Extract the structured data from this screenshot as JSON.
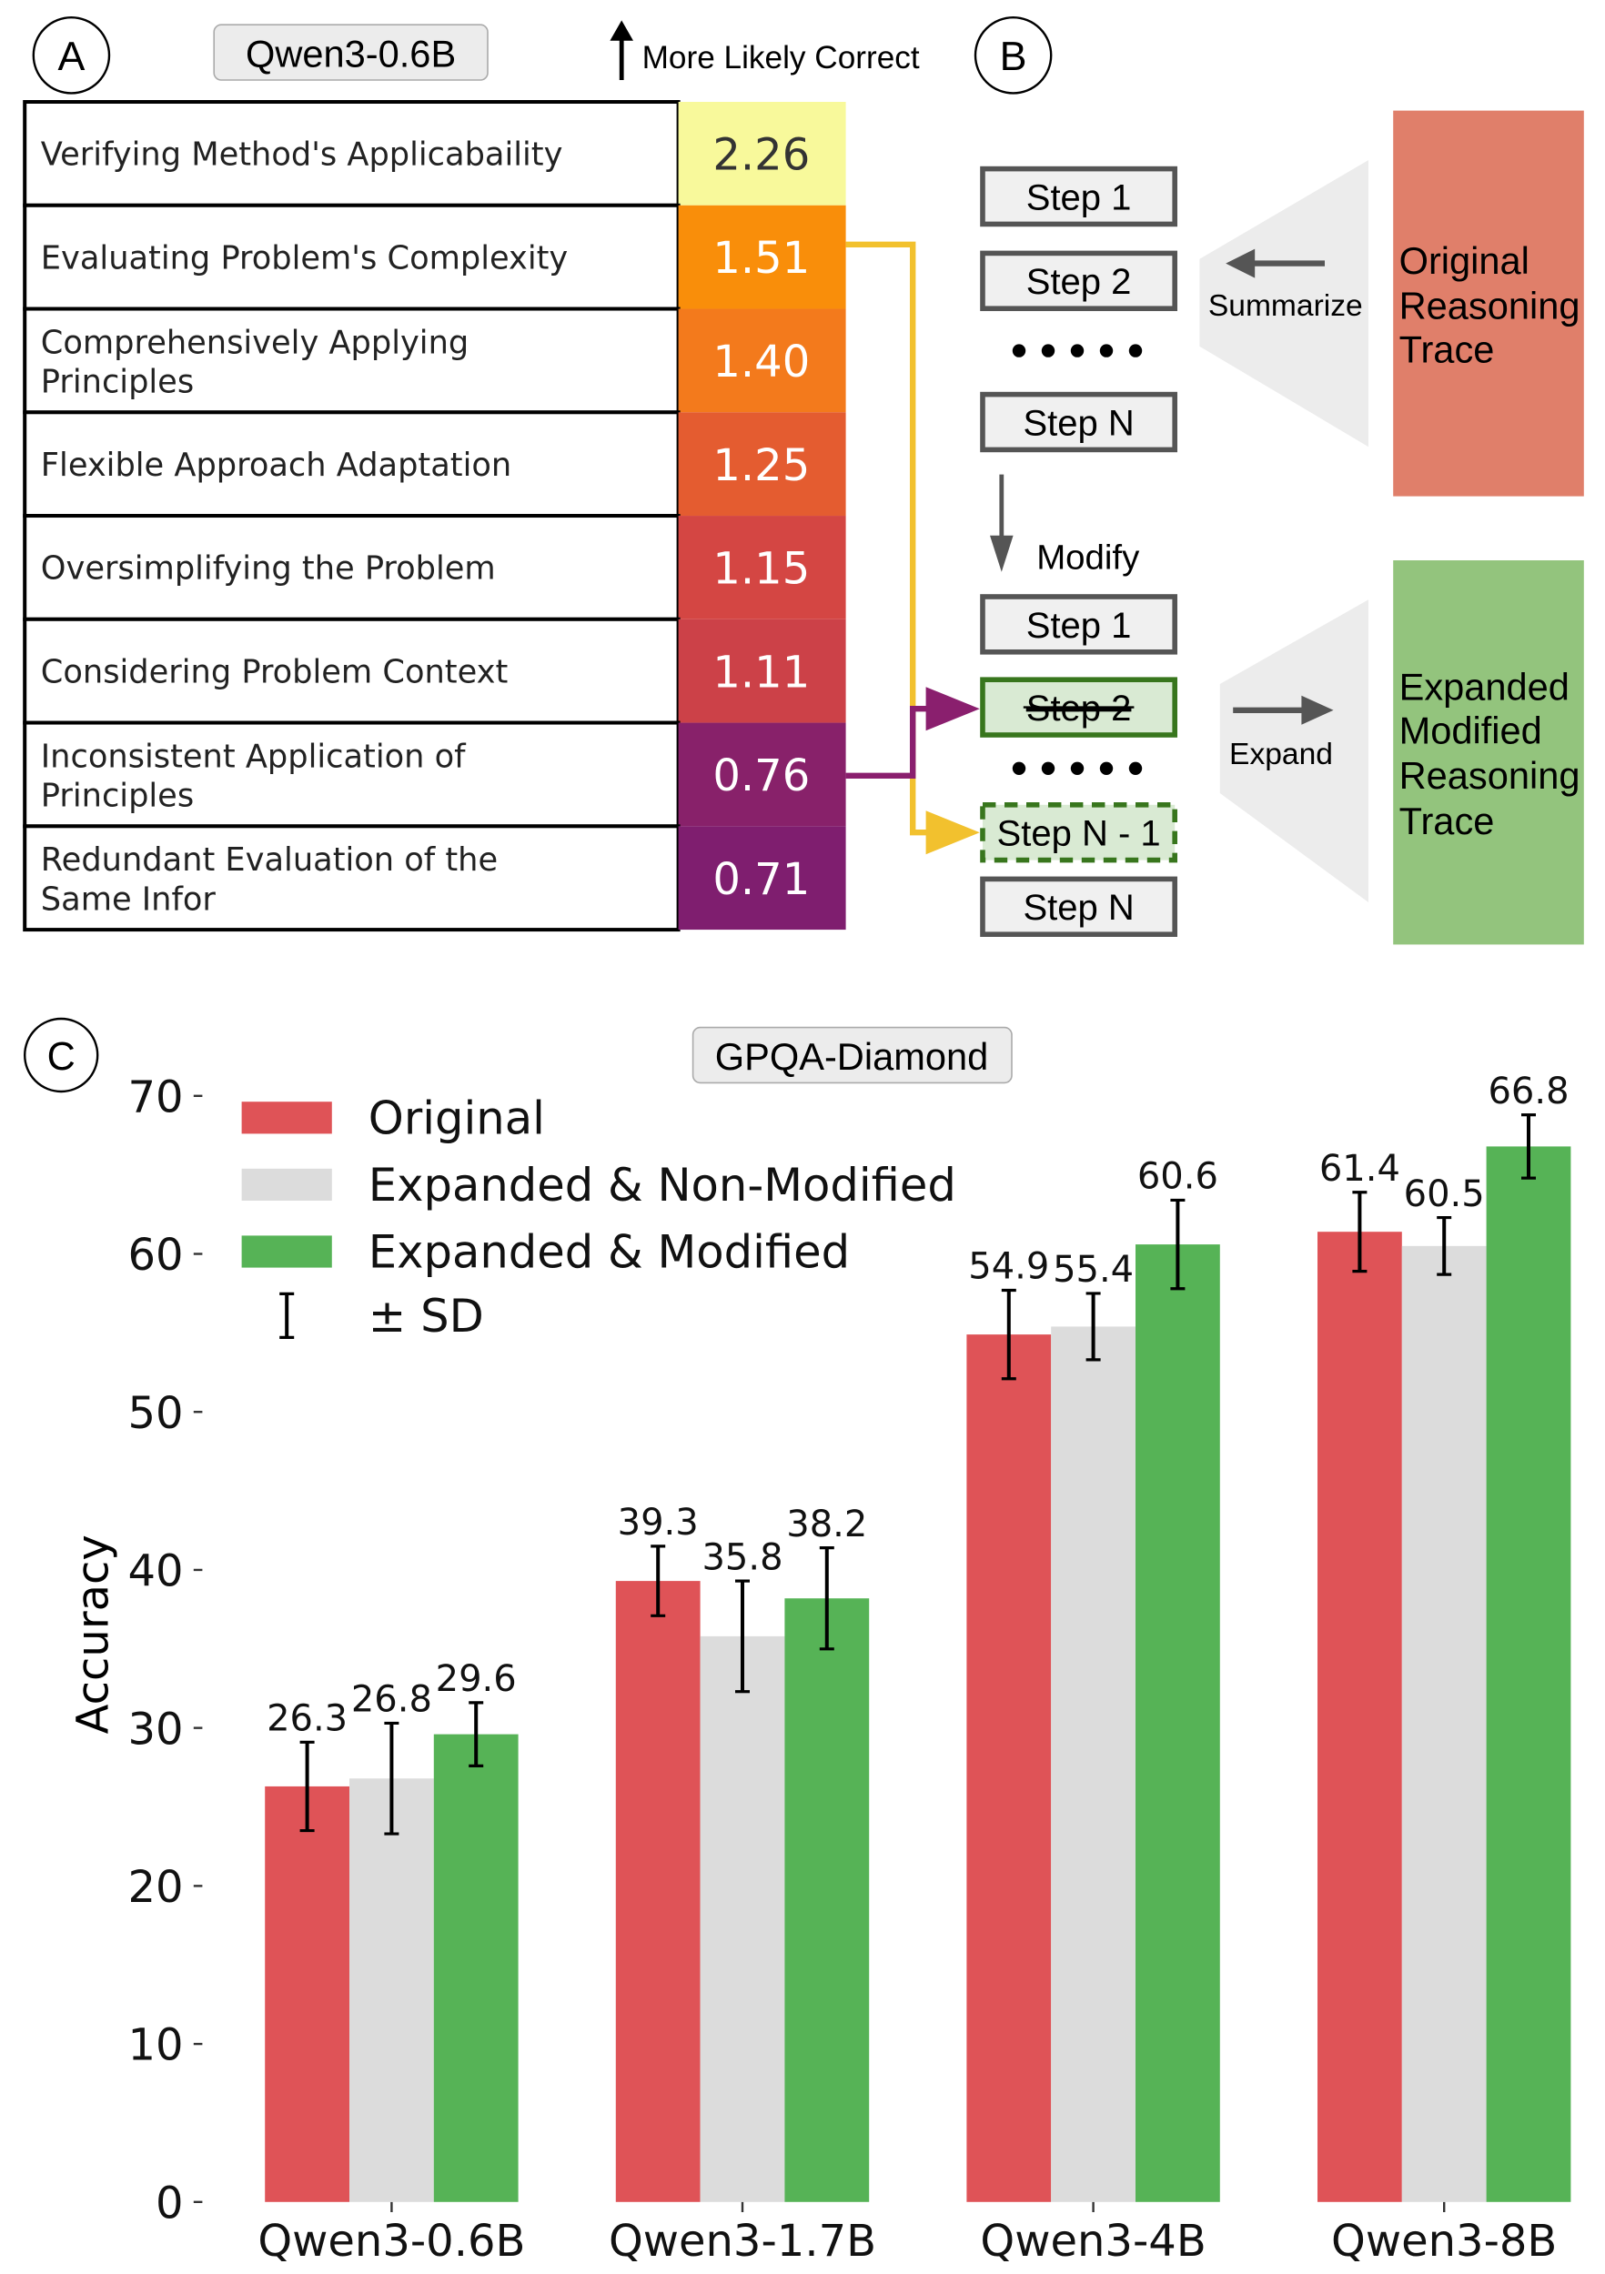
{
  "panel_a": {
    "label": "A",
    "model_badge": "Qwen3-0.6B",
    "direction_note": "More Likely Correct",
    "rows": [
      {
        "lines": [
          "Verifying Method's Applicabaility"
        ],
        "score": "2.26",
        "color": "#f8f99b"
      },
      {
        "lines": [
          "Evaluating Problem's Complexity"
        ],
        "score": "1.51",
        "color": "#f98e0a"
      },
      {
        "lines": [
          "Comprehensively Applying",
          "Principles"
        ],
        "score": "1.40",
        "color": "#f37a1c"
      },
      {
        "lines": [
          "Flexible Approach Adaptation"
        ],
        "score": "1.25",
        "color": "#e45c30"
      },
      {
        "lines": [
          "Oversimplifying the Problem"
        ],
        "score": "1.15",
        "color": "#d44643"
      },
      {
        "lines": [
          "Considering Problem Context"
        ],
        "score": "1.11",
        "color": "#cc4148"
      },
      {
        "lines": [
          "Inconsistent Application of",
          "Principles"
        ],
        "score": "0.76",
        "color": "#88216a"
      },
      {
        "lines": [
          "Redundant Evaluation of the",
          "Same Infor"
        ],
        "score": "0.71",
        "color": "#7f1e6f"
      }
    ]
  },
  "panel_b": {
    "label": "B",
    "top_steps": [
      "Step 1",
      "Step 2",
      "Step N"
    ],
    "bottom_steps": [
      "Step 1",
      "Step 2",
      "Step N - 1",
      "Step N"
    ],
    "ellipsis": "•••••",
    "summarize": "Summarize",
    "modify": "Modify",
    "expand": "Expand",
    "original_box": [
      "Original",
      "Reasoning",
      "Trace"
    ],
    "expanded_box": [
      "Expanded",
      "Modified",
      "Reasoning",
      "Trace"
    ],
    "colors": {
      "original": "#e07f6a",
      "expanded": "#93c47d",
      "yellow_link": "#f2c12e",
      "purple_link": "#8a1f6e"
    }
  },
  "panel_c": {
    "label": "C",
    "benchmark_badge": "GPQA-Diamond"
  },
  "chart_data": {
    "type": "bar",
    "title": "GPQA-Diamond",
    "ylabel": "Accuracy",
    "xlabel": "",
    "ylim": [
      0,
      70
    ],
    "yticks": [
      0,
      10,
      20,
      30,
      40,
      50,
      60,
      70
    ],
    "categories": [
      "Qwen3-0.6B",
      "Qwen3-1.7B",
      "Qwen3-4B",
      "Qwen3-8B"
    ],
    "series": [
      {
        "name": "Original",
        "color": "#df5357",
        "values": [
          26.3,
          39.3,
          54.9,
          61.4
        ],
        "sd": [
          2.8,
          2.2,
          2.8,
          2.5
        ]
      },
      {
        "name": "Expanded & Non-Modified",
        "color": "#dcdcdc",
        "values": [
          26.8,
          35.8,
          55.4,
          60.5
        ],
        "sd": [
          3.5,
          3.5,
          2.1,
          1.8
        ]
      },
      {
        "name": "Expanded & Modified",
        "color": "#56b356",
        "values": [
          29.6,
          38.2,
          60.6,
          66.8
        ],
        "sd": [
          2.0,
          3.2,
          2.8,
          2.0
        ]
      }
    ],
    "legend_extra": "± SD",
    "legend_position": "top-left",
    "grid": false
  }
}
